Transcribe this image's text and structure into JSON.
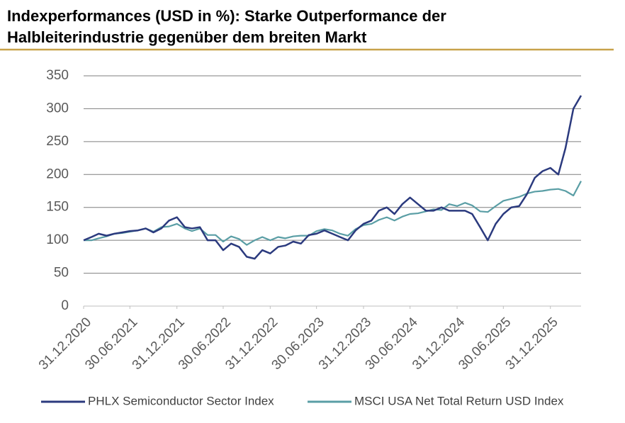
{
  "chart_data": {
    "type": "line",
    "title": [
      "Indexperformances (USD in %): Starke Outperformance der",
      "Halbleiterindustrie gegenüber dem breiten Markt"
    ],
    "x": [
      "31.12.2020",
      "31.01.2021",
      "28.02.2021",
      "31.03.2021",
      "30.04.2021",
      "31.05.2021",
      "30.06.2021",
      "31.07.2021",
      "31.08.2021",
      "30.09.2021",
      "31.10.2021",
      "30.11.2021",
      "31.12.2021",
      "31.01.2022",
      "28.02.2022",
      "31.03.2022",
      "30.04.2022",
      "31.05.2022",
      "30.06.2022",
      "31.07.2022",
      "31.08.2022",
      "30.09.2022",
      "31.10.2022",
      "30.11.2022",
      "31.12.2022",
      "31.01.2023",
      "28.02.2023",
      "31.03.2023",
      "30.04.2023",
      "31.05.2023",
      "30.06.2023",
      "31.07.2023",
      "31.08.2023",
      "30.09.2023",
      "31.10.2023",
      "30.11.2023",
      "31.12.2023",
      "31.01.2024",
      "29.02.2024",
      "31.03.2024",
      "30.04.2024",
      "31.05.2024",
      "30.06.2024",
      "31.07.2024",
      "31.08.2024",
      "30.09.2024",
      "31.10.2024",
      "30.11.2024",
      "31.12.2024",
      "31.01.2025",
      "28.02.2025",
      "31.03.2025",
      "30.04.2025",
      "31.05.2025",
      "30.06.2025",
      "31.07.2025",
      "31.08.2025",
      "30.09.2025",
      "31.10.2025",
      "30.11.2025",
      "31.12.2025",
      "31.01.2026",
      "28.02.2026",
      "31.03.2026",
      "30.04.2026"
    ],
    "series": [
      {
        "name": "PHLX Semiconductor Sector Index",
        "color": "#2b3a7e",
        "values": [
          100,
          105,
          110,
          107,
          110,
          112,
          114,
          115,
          118,
          112,
          118,
          130,
          135,
          120,
          118,
          120,
          100,
          100,
          85,
          95,
          90,
          75,
          72,
          85,
          80,
          90,
          92,
          98,
          95,
          108,
          110,
          115,
          110,
          105,
          100,
          115,
          125,
          130,
          145,
          150,
          140,
          155,
          165,
          155,
          145,
          145,
          150,
          145,
          145,
          145,
          140,
          120,
          100,
          125,
          140,
          150,
          152,
          170,
          195,
          205,
          210,
          200,
          240,
          300,
          320
        ]
      },
      {
        "name": "MSCI USA Net Total Return USD Index",
        "color": "#5a9ea5",
        "values": [
          100,
          100,
          103,
          106,
          110,
          111,
          113,
          115,
          118,
          113,
          120,
          121,
          125,
          118,
          114,
          118,
          108,
          108,
          98,
          106,
          102,
          93,
          100,
          105,
          100,
          105,
          103,
          106,
          107,
          107,
          114,
          117,
          115,
          110,
          107,
          117,
          123,
          125,
          131,
          135,
          130,
          136,
          140,
          141,
          144,
          147,
          146,
          155,
          152,
          157,
          153,
          144,
          143,
          152,
          160,
          163,
          166,
          171,
          174,
          175,
          177,
          178,
          175,
          168,
          190
        ]
      }
    ],
    "xlim": [
      "31.12.2020",
      "30.04.2026"
    ],
    "xticks": [
      "31.12.2020",
      "30.06.2021",
      "31.12.2021",
      "30.06.2022",
      "31.12.2022",
      "30.06.2023",
      "31.12.2023",
      "30.06.2024",
      "31.12.2024",
      "30.06.2025",
      "31.12.2025"
    ],
    "ylim": [
      0,
      350
    ],
    "yticks": [
      0,
      50,
      100,
      150,
      200,
      250,
      300,
      350
    ],
    "grid": true
  }
}
